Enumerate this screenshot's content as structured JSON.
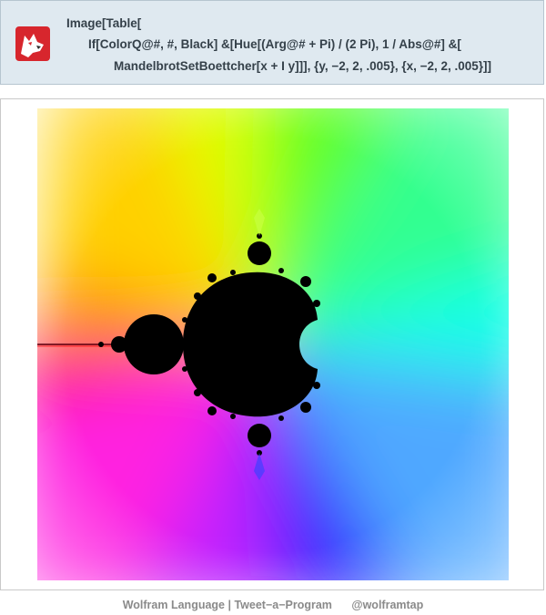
{
  "input": {
    "icon": "wolf-icon",
    "code_lines": [
      "Image[Table[",
      "If[ColorQ@#, #, Black] &[Hue[(Arg@# + Pi) / (2 Pi), 1 / Abs@#] &[",
      "MandelbrotSetBoettcher[x + I y]]], {y, −2, 2, .005}, {x, −2, 2, .005}]]"
    ]
  },
  "output": {
    "image": "mandelbrot-boettcher-hue-image"
  },
  "footer": {
    "brand": "Wolfram Language | Tweet−a−Program",
    "handle": "@wolframtap"
  }
}
